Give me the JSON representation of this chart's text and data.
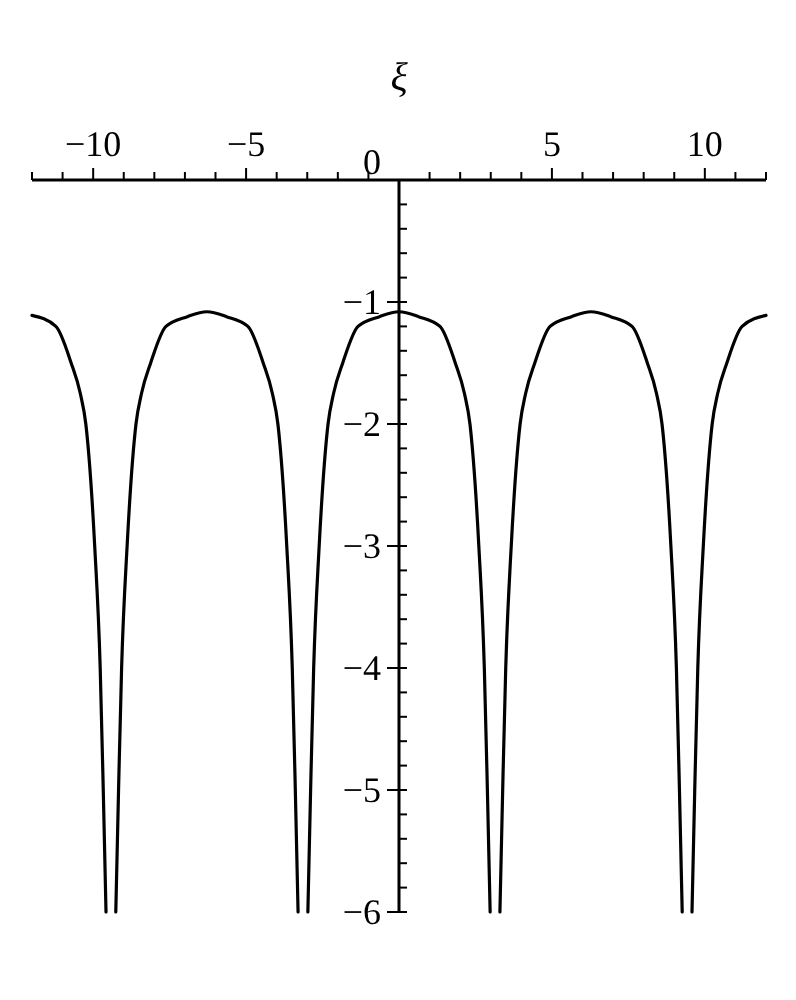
{
  "chart_data": {
    "type": "line",
    "xlabel": "ξ",
    "xlim": [
      -12,
      12
    ],
    "ylim": [
      -6,
      0
    ],
    "xticks": [
      {
        "value": -12,
        "label": null
      },
      {
        "value": -11,
        "label": null
      },
      {
        "value": -10,
        "label": "−10"
      },
      {
        "value": -9,
        "label": null
      },
      {
        "value": -8,
        "label": null
      },
      {
        "value": -7,
        "label": null
      },
      {
        "value": -6,
        "label": null
      },
      {
        "value": -5,
        "label": "−5"
      },
      {
        "value": -4,
        "label": null
      },
      {
        "value": -3,
        "label": null
      },
      {
        "value": -2,
        "label": null
      },
      {
        "value": -1,
        "label": null
      },
      {
        "value": 1,
        "label": null
      },
      {
        "value": 2,
        "label": null
      },
      {
        "value": 3,
        "label": null
      },
      {
        "value": 4,
        "label": null
      },
      {
        "value": 5,
        "label": "5"
      },
      {
        "value": 6,
        "label": null
      },
      {
        "value": 7,
        "label": null
      },
      {
        "value": 8,
        "label": null
      },
      {
        "value": 9,
        "label": null
      },
      {
        "value": 10,
        "label": "10"
      },
      {
        "value": 11,
        "label": null
      },
      {
        "value": 12,
        "label": null
      }
    ],
    "yticks": [
      0,
      {
        "value": -1,
        "label": "−1"
      },
      {
        "value": -2,
        "label": "−2"
      },
      {
        "value": -3,
        "label": "−3"
      },
      {
        "value": -4,
        "label": "−4"
      },
      {
        "value": -5,
        "label": "−5"
      },
      {
        "value": -6,
        "label": "−6"
      }
    ],
    "grid": false,
    "marker": "none",
    "line_style": "solid",
    "series": [
      {
        "color": "#000000",
        "x": [
          -12,
          -11.22,
          -10.72,
          -10.42,
          -10.24,
          -9.95,
          -9.77,
          -9.67,
          -9.58,
          -9.42,
          -9.26,
          -9.17,
          -9.07,
          -8.89,
          -8.6,
          -8.42,
          -8.12,
          -7.62,
          -6.92,
          -6.28,
          -5.64,
          -4.94,
          -4.44,
          -4.14,
          -3.96,
          -3.67,
          -3.49,
          -3.39,
          -3.3,
          -3.14,
          -2.98,
          -2.89,
          -2.79,
          -2.61,
          -2.32,
          -2.14,
          -1.84,
          -1.34,
          -0.64,
          0,
          0.64,
          1.34,
          1.84,
          2.14,
          2.32,
          2.61,
          2.79,
          2.89,
          2.98,
          3.14,
          3.3,
          3.39,
          3.49,
          3.67,
          3.96,
          4.14,
          4.44,
          4.94,
          5.64,
          6.28,
          6.92,
          7.62,
          8.12,
          8.42,
          8.6,
          8.89,
          9.07,
          9.17,
          9.26,
          9.42,
          9.58,
          9.67,
          9.77,
          9.95,
          10.24,
          10.42,
          10.72,
          11.22,
          12
        ],
        "values": [
          -1.11,
          -1.2,
          -1.5,
          -1.75,
          -2,
          -3,
          -4,
          -5,
          -6,
          null,
          -6,
          -5,
          -4,
          -3,
          -2,
          -1.75,
          -1.5,
          -1.2,
          -1.12,
          -1.08,
          -1.12,
          -1.2,
          -1.5,
          -1.75,
          -2,
          -3,
          -4,
          -5,
          -6,
          null,
          -6,
          -5,
          -4,
          -3,
          -2,
          -1.75,
          -1.5,
          -1.2,
          -1.12,
          -1.08,
          -1.12,
          -1.2,
          -1.5,
          -1.75,
          -2,
          -3,
          -4,
          -5,
          -6,
          null,
          -6,
          -5,
          -4,
          -3,
          -2,
          -1.75,
          -1.5,
          -1.2,
          -1.12,
          -1.08,
          -1.12,
          -1.2,
          -1.5,
          -1.75,
          -2,
          -3,
          -4,
          -5,
          -6,
          null,
          -6,
          -5,
          -4,
          -3,
          -2,
          -1.75,
          -1.5,
          -1.2,
          -1.11
        ]
      }
    ]
  }
}
